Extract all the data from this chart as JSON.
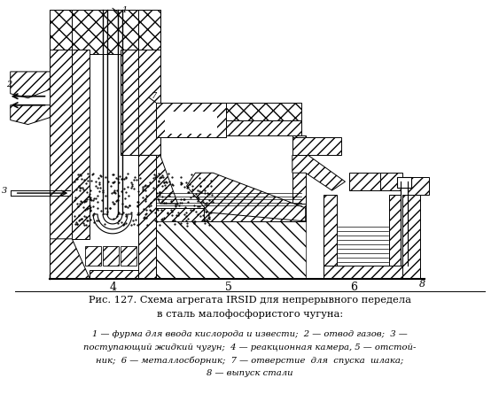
{
  "title_line1": "Рис. 127. Схема агрегата IRSID для непрерывного передела",
  "title_line2": "в сталь малофосфористого чугуна:",
  "caption_line1": "1 — фурма для ввода кислорода и извести;  2 — отвод газов;  3 —",
  "caption_line2": "поступающий жидкий чугун;  4 — реакционная камера, 5 — отстой-",
  "caption_line3": "ник;  6 — металлосборник;  7 — отверстие  для  спуска  шлака;",
  "caption_line4": "8 — выпуск стали",
  "bg_color": "#ffffff",
  "lc": "#000000"
}
